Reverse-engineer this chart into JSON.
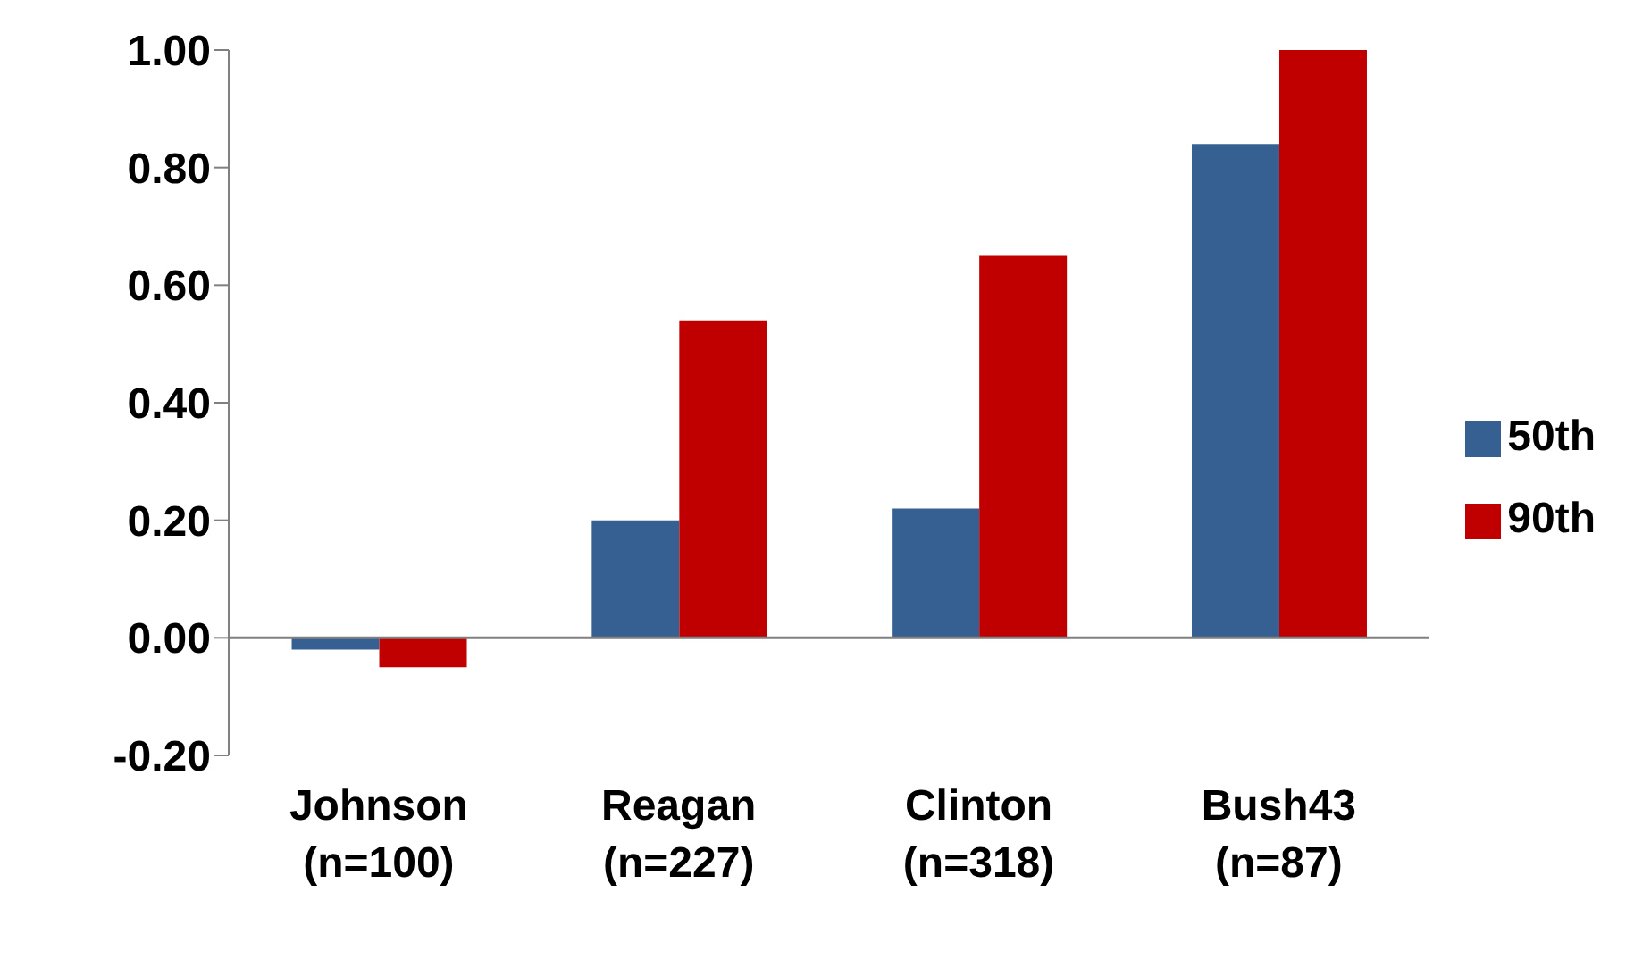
{
  "chart_data": {
    "type": "bar",
    "categories": [
      "Johnson\n(n=100)",
      "Reagan\n(n=227)",
      "Clinton\n(n=318)",
      "Bush43\n(n=87)"
    ],
    "series": [
      {
        "name": "50th",
        "color": "#366092",
        "values": [
          -0.02,
          0.2,
          0.22,
          0.84
        ]
      },
      {
        "name": "90th",
        "color": "#c00000",
        "values": [
          -0.05,
          0.54,
          0.65,
          1.0
        ]
      }
    ],
    "ylim": [
      -0.2,
      1.0
    ],
    "yticks": [
      {
        "value": -0.2,
        "label": "-0.20"
      },
      {
        "value": 0,
        "label": "0.00"
      },
      {
        "value": 0.2,
        "label": "0.20"
      },
      {
        "value": 0.4,
        "label": "0.40"
      },
      {
        "value": 0.6,
        "label": "0.60"
      },
      {
        "value": 0.8,
        "label": "0.80"
      },
      {
        "value": 1.0,
        "label": "1.00"
      }
    ],
    "ref_lines": [
      {
        "axis": "y",
        "value": 0,
        "color": "#808080"
      }
    ],
    "legend": "right"
  }
}
